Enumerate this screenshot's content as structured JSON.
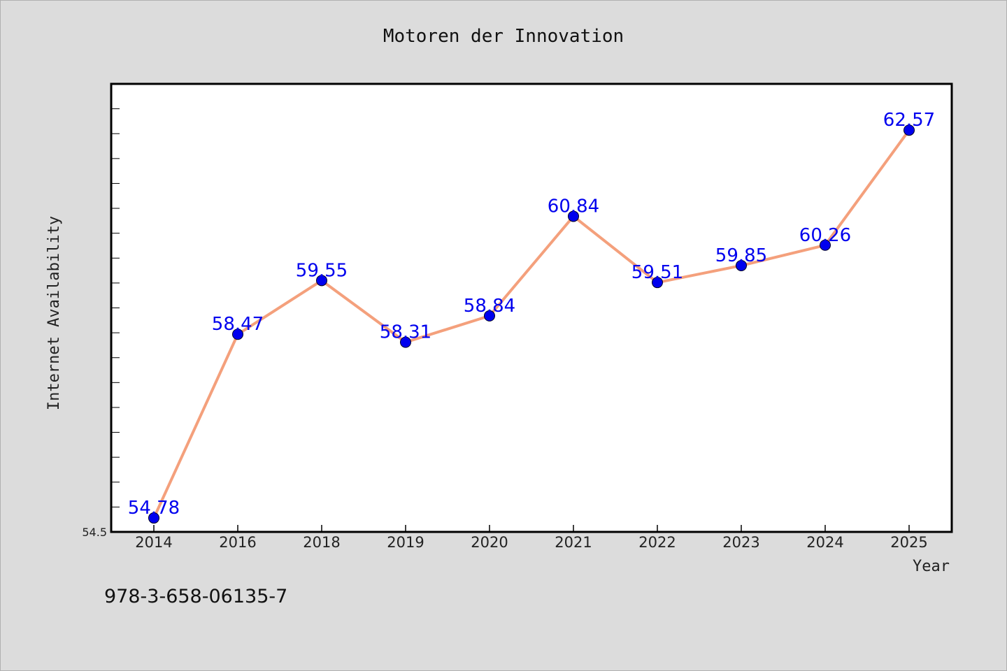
{
  "chart_data": {
    "type": "line",
    "title": "Motoren der Innovation",
    "xlabel": "Year",
    "ylabel": "Internet Availability",
    "categories": [
      "2014",
      "2016",
      "2018",
      "2019",
      "2020",
      "2021",
      "2022",
      "2023",
      "2024",
      "2025"
    ],
    "series": [
      {
        "values": [
          54.78,
          58.47,
          59.55,
          58.31,
          58.84,
          60.84,
          59.51,
          59.85,
          60.26,
          62.57
        ],
        "labels": [
          "54.78",
          "58.47",
          "59.55",
          "58.31",
          "58.84",
          "60.84",
          "59.51",
          "59.85",
          "60.26",
          "62.57"
        ],
        "line_color": "#f4a07c",
        "marker_color": "#0000ee"
      }
    ],
    "ylim": [
      54.5,
      63.5
    ],
    "y_tick_label": "54.5",
    "grid": false,
    "legend": "none"
  },
  "footer": {
    "isbn": "978-3-658-06135-7"
  }
}
